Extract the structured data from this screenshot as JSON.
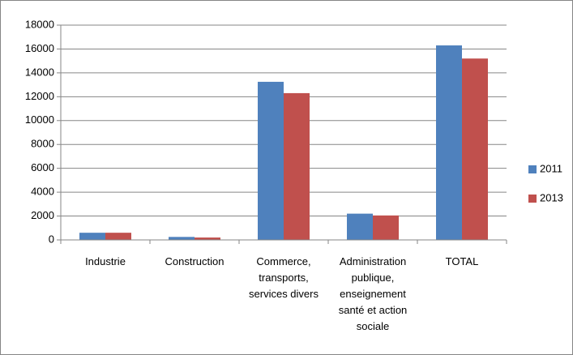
{
  "chart_data": {
    "type": "bar",
    "categories": [
      "Industrie",
      "Construction",
      "Commerce, transports, services divers",
      "Administration publique, enseignement santé et action sociale",
      "TOTAL"
    ],
    "series": [
      {
        "name": "2011",
        "color": "#4f81bd",
        "values": [
          600,
          250,
          13250,
          2200,
          16300
        ]
      },
      {
        "name": "2013",
        "color": "#c0504d",
        "values": [
          600,
          200,
          12300,
          2050,
          15200
        ]
      }
    ],
    "ylim": [
      0,
      18000
    ],
    "yticks": [
      0,
      2000,
      4000,
      6000,
      8000,
      10000,
      12000,
      14000,
      16000,
      18000
    ],
    "grid": true,
    "legend": "right"
  }
}
